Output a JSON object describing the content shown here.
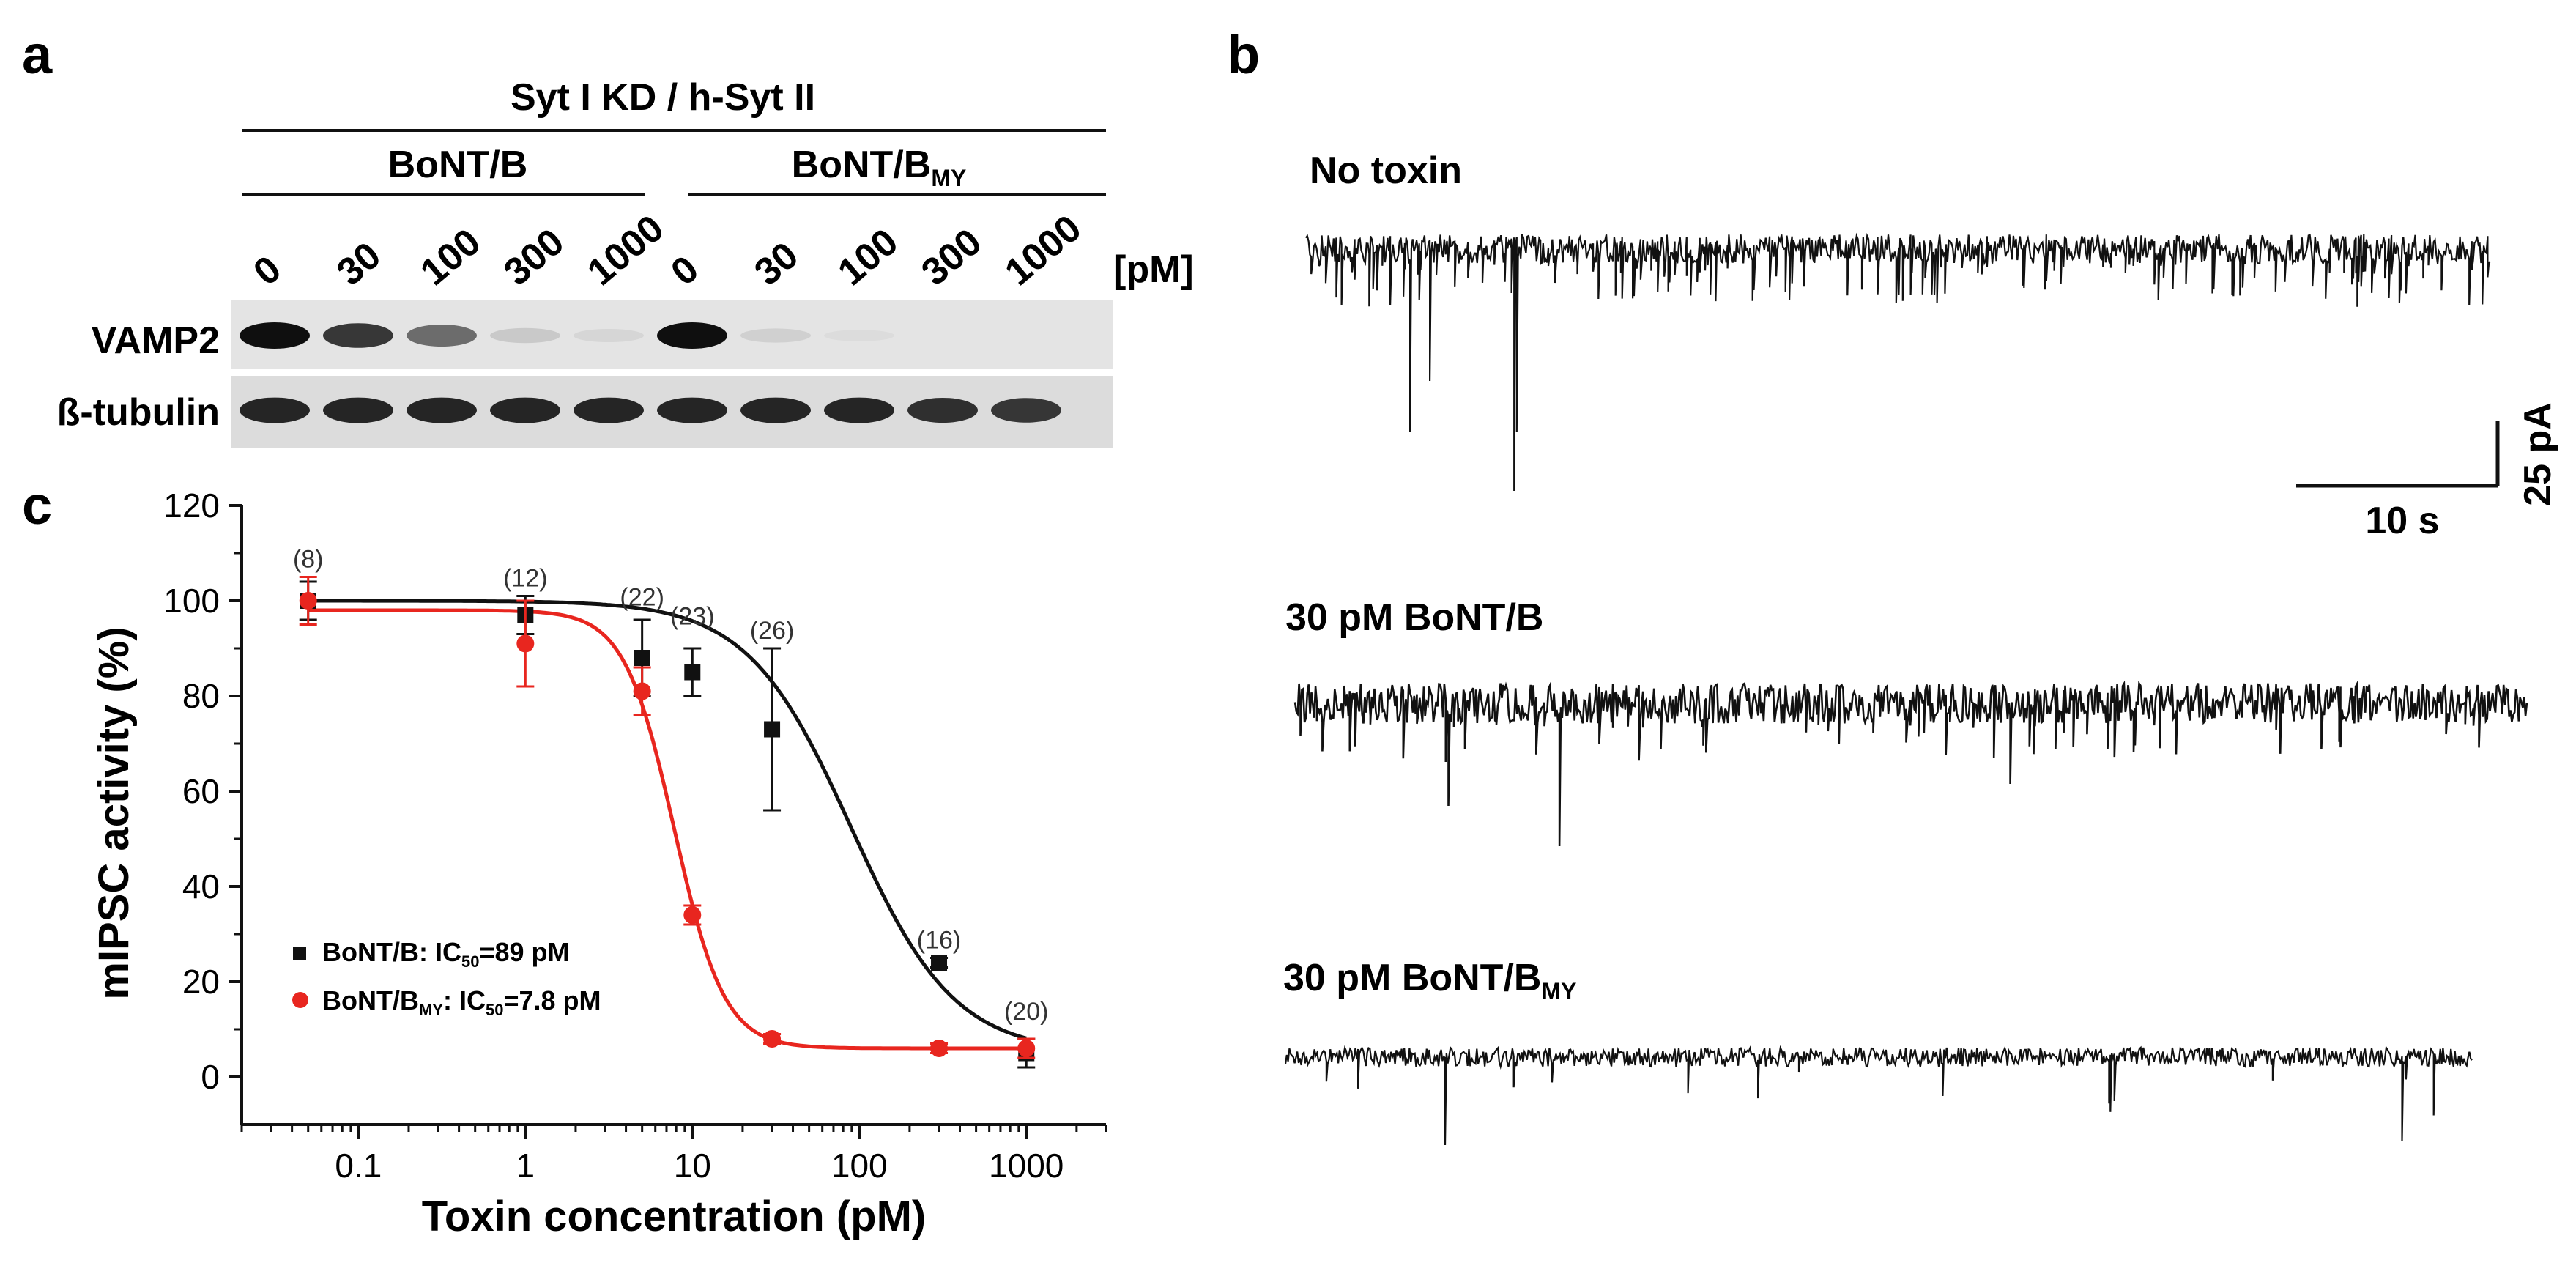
{
  "panels": {
    "a": {
      "letter": "a",
      "header": "Syt I KD / h-Syt II",
      "groups": [
        {
          "name": "BoNT/B",
          "sub": ""
        },
        {
          "name": "BoNT/B",
          "sub": "MY"
        }
      ],
      "concentrations": [
        "0",
        "30",
        "100",
        "300",
        "1000",
        "0",
        "30",
        "100",
        "300",
        "1000"
      ],
      "unit": "[pM]",
      "blots": [
        {
          "label": "VAMP2",
          "intensities": [
            1.0,
            0.9,
            0.75,
            0.35,
            0.25,
            1.0,
            0.3,
            0.15,
            0.0,
            0.0
          ]
        },
        {
          "label": "ß-tubulin",
          "intensities": [
            0.95,
            0.95,
            0.95,
            0.95,
            0.95,
            0.95,
            0.95,
            0.95,
            0.92,
            0.9
          ]
        }
      ]
    },
    "b": {
      "letter": "b",
      "traces": [
        {
          "label": "No toxin",
          "sub": ""
        },
        {
          "label": "30 pM BoNT/B",
          "sub": ""
        },
        {
          "label": "30 pM BoNT/B",
          "sub": "MY"
        }
      ],
      "scalebar_x": "10 s",
      "scalebar_y": "25 pA"
    },
    "c": {
      "letter": "c"
    }
  },
  "chart_data": {
    "type": "scatter",
    "xscale": "log",
    "xlim": [
      0.02,
      3000
    ],
    "ylim": [
      -10,
      120
    ],
    "xlabel": "Toxin concentration (pM)",
    "ylabel": "mIPSC activity (%)",
    "xticks": [
      "0.1",
      "1",
      "10",
      "100",
      "1000"
    ],
    "yticks": [
      "0",
      "20",
      "40",
      "60",
      "80",
      "100",
      "120"
    ],
    "legend": [
      {
        "color": "#111111",
        "text": "BoNT/B: IC",
        "sub": "50",
        "suffix": "=89 pM"
      },
      {
        "color": "#e8261f",
        "pre": "BoNT/B",
        "presub": "MY",
        "text": ": IC",
        "sub": "50",
        "suffix": "=7.8 pM"
      }
    ],
    "series": [
      {
        "name": "BoNT/B",
        "color": "#111111",
        "marker": "square",
        "x": [
          0.05,
          1,
          5,
          10,
          30,
          300,
          1000
        ],
        "y": [
          100,
          97,
          88,
          85,
          73,
          24,
          5
        ],
        "err": [
          4,
          4,
          8,
          5,
          17,
          1,
          3
        ],
        "ic50": 89,
        "top": 100,
        "bottom": 5,
        "hill": 1.4
      },
      {
        "name": "BoNT/BMY",
        "color": "#e8261f",
        "marker": "circle",
        "x": [
          0.05,
          1,
          5,
          10,
          30,
          300,
          1000
        ],
        "y": [
          100,
          91,
          81,
          34,
          8,
          6,
          6
        ],
        "err": [
          5,
          9,
          5,
          2,
          1,
          1,
          2
        ],
        "ic50": 7.8,
        "top": 98,
        "bottom": 6,
        "hill": 2.9
      }
    ],
    "n_labels": [
      {
        "x": 0.05,
        "y": 107,
        "text": "(8)"
      },
      {
        "x": 1,
        "y": 103,
        "text": "(12)"
      },
      {
        "x": 5,
        "y": 99,
        "text": "(22)"
      },
      {
        "x": 10,
        "y": 95,
        "text": "(23)"
      },
      {
        "x": 30,
        "y": 92,
        "text": "(26)"
      },
      {
        "x": 300,
        "y": 27,
        "text": "(16)"
      },
      {
        "x": 1000,
        "y": 12,
        "text": "(20)"
      }
    ]
  }
}
